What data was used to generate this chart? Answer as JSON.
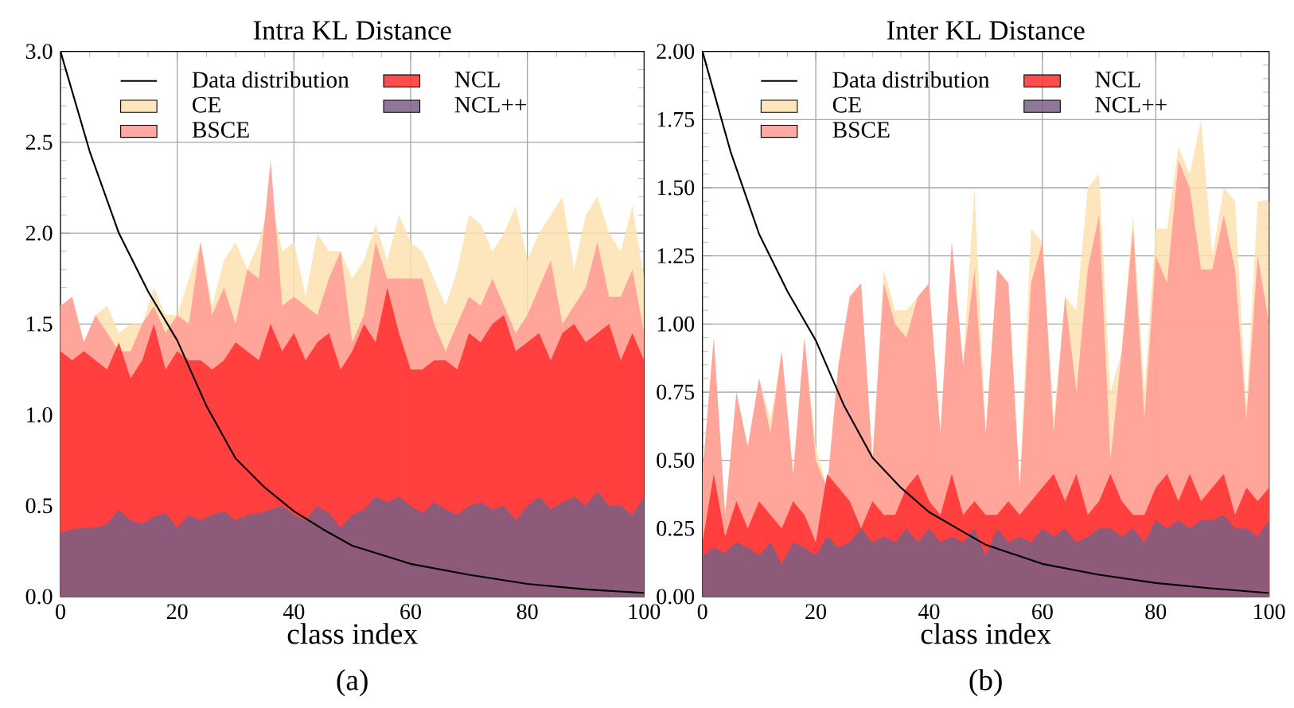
{
  "chart_data": [
    {
      "type": "area",
      "title": "Intra KL Distance",
      "xlabel": "class index",
      "annotations": [
        "(a)"
      ],
      "x": [
        0,
        2,
        4,
        6,
        8,
        10,
        12,
        14,
        16,
        18,
        20,
        22,
        24,
        26,
        28,
        30,
        32,
        34,
        36,
        38,
        40,
        42,
        44,
        46,
        48,
        50,
        52,
        54,
        56,
        58,
        60,
        62,
        64,
        66,
        68,
        70,
        72,
        74,
        76,
        78,
        80,
        82,
        84,
        86,
        88,
        90,
        92,
        94,
        96,
        98,
        100
      ],
      "xlim": [
        0,
        100
      ],
      "ylim": [
        0,
        3
      ],
      "xticks": [
        0,
        20,
        40,
        60,
        80,
        100
      ],
      "yticks": [
        {
          "value": 0,
          "label": "0.0"
        },
        0.5,
        {
          "value": 1,
          "label": "1.0"
        },
        1.5,
        {
          "value": 2,
          "label": "2.0"
        },
        2.5,
        {
          "value": 3,
          "label": "3.0"
        }
      ],
      "grid": true,
      "legend": "top",
      "marker": "none",
      "series": [
        {
          "name": "Data distribution",
          "type": "line",
          "color": "#000000",
          "x": [
            0,
            5,
            10,
            15,
            20,
            25,
            30,
            35,
            40,
            45,
            50,
            60,
            70,
            80,
            90,
            100
          ],
          "values": [
            3.0,
            2.45,
            2.0,
            1.68,
            1.41,
            1.05,
            0.76,
            0.6,
            0.47,
            0.37,
            0.28,
            0.18,
            0.12,
            0.07,
            0.04,
            0.02
          ]
        },
        {
          "name": "CE",
          "color": "#fde0b0",
          "values": [
            1.6,
            1.65,
            1.4,
            1.55,
            1.6,
            1.45,
            1.5,
            1.5,
            1.7,
            1.55,
            1.55,
            1.75,
            1.95,
            1.6,
            1.85,
            1.95,
            1.8,
            1.95,
            2.2,
            1.9,
            1.95,
            1.65,
            2.0,
            1.9,
            1.9,
            1.75,
            1.85,
            2.05,
            1.85,
            2.1,
            1.95,
            1.9,
            1.75,
            1.6,
            1.8,
            2.1,
            2.05,
            1.9,
            2.0,
            2.15,
            1.85,
            2.0,
            2.1,
            2.2,
            1.8,
            2.1,
            2.2,
            2.0,
            1.9,
            2.15,
            1.75
          ]
        },
        {
          "name": "BSCE",
          "color": "#ff9a94",
          "values": [
            1.6,
            1.65,
            1.4,
            1.55,
            1.45,
            1.35,
            1.35,
            1.5,
            1.6,
            1.45,
            1.55,
            1.5,
            1.95,
            1.55,
            1.7,
            1.5,
            1.8,
            1.75,
            2.4,
            1.6,
            1.65,
            1.6,
            1.55,
            1.75,
            1.9,
            1.4,
            1.55,
            1.95,
            1.75,
            1.75,
            1.75,
            1.75,
            1.5,
            1.35,
            1.5,
            1.65,
            1.6,
            1.75,
            1.6,
            1.45,
            1.55,
            1.7,
            1.85,
            1.5,
            1.6,
            1.7,
            1.95,
            1.65,
            1.65,
            1.8,
            1.45
          ]
        },
        {
          "name": "NCL",
          "color": "#ff2e2e",
          "values": [
            1.35,
            1.3,
            1.35,
            1.3,
            1.25,
            1.4,
            1.2,
            1.3,
            1.5,
            1.25,
            1.35,
            1.3,
            1.3,
            1.25,
            1.3,
            1.4,
            1.35,
            1.3,
            1.5,
            1.35,
            1.45,
            1.3,
            1.4,
            1.45,
            1.25,
            1.35,
            1.5,
            1.4,
            1.7,
            1.45,
            1.25,
            1.25,
            1.3,
            1.3,
            1.25,
            1.45,
            1.4,
            1.5,
            1.55,
            1.35,
            1.4,
            1.45,
            1.3,
            1.45,
            1.5,
            1.4,
            1.45,
            1.5,
            1.3,
            1.45,
            1.3
          ]
        },
        {
          "name": "NCL++",
          "color": "#7a5f85",
          "values": [
            0.35,
            0.37,
            0.38,
            0.38,
            0.4,
            0.48,
            0.42,
            0.4,
            0.44,
            0.46,
            0.38,
            0.45,
            0.42,
            0.45,
            0.47,
            0.42,
            0.45,
            0.46,
            0.48,
            0.5,
            0.45,
            0.42,
            0.5,
            0.46,
            0.38,
            0.45,
            0.48,
            0.55,
            0.52,
            0.55,
            0.5,
            0.46,
            0.52,
            0.48,
            0.45,
            0.5,
            0.52,
            0.48,
            0.5,
            0.42,
            0.5,
            0.55,
            0.48,
            0.52,
            0.55,
            0.5,
            0.58,
            0.5,
            0.5,
            0.45,
            0.55
          ]
        }
      ]
    },
    {
      "type": "area",
      "title": "Inter KL Distance",
      "xlabel": "class index",
      "annotations": [
        "(b)"
      ],
      "x": [
        0,
        2,
        4,
        6,
        8,
        10,
        12,
        14,
        16,
        18,
        20,
        22,
        24,
        26,
        28,
        30,
        32,
        34,
        36,
        38,
        40,
        42,
        44,
        46,
        48,
        50,
        52,
        54,
        56,
        58,
        60,
        62,
        64,
        66,
        68,
        70,
        72,
        74,
        76,
        78,
        80,
        82,
        84,
        86,
        88,
        90,
        92,
        94,
        96,
        98,
        100
      ],
      "xlim": [
        0,
        100
      ],
      "ylim": [
        0,
        2
      ],
      "xticks": [
        0,
        20,
        40,
        60,
        80,
        100
      ],
      "yticks": [
        {
          "value": 0,
          "label": "0.00"
        },
        0.25,
        {
          "value": 0.5,
          "label": "0.50"
        },
        0.75,
        {
          "value": 1,
          "label": "1.00"
        },
        1.25,
        {
          "value": 1.5,
          "label": "1.50"
        },
        1.75,
        {
          "value": 2,
          "label": "2.00"
        }
      ],
      "grid": true,
      "legend": "top",
      "marker": "none",
      "series": [
        {
          "name": "Data distribution",
          "type": "line",
          "color": "#000000",
          "x": [
            0,
            5,
            10,
            15,
            20,
            25,
            30,
            35,
            40,
            45,
            50,
            60,
            70,
            80,
            90,
            100
          ],
          "values": [
            2.0,
            1.63,
            1.33,
            1.12,
            0.94,
            0.7,
            0.51,
            0.4,
            0.31,
            0.25,
            0.19,
            0.12,
            0.08,
            0.05,
            0.03,
            0.013
          ]
        },
        {
          "name": "CE",
          "color": "#fde0b0",
          "values": [
            0.45,
            0.95,
            0.3,
            0.75,
            0.55,
            0.8,
            0.65,
            0.9,
            0.45,
            0.95,
            0.55,
            0.4,
            0.85,
            1.1,
            1.15,
            0.5,
            1.2,
            1.05,
            1.05,
            1.1,
            1.15,
            0.6,
            1.3,
            0.85,
            1.5,
            0.6,
            1.2,
            1.15,
            0.4,
            1.35,
            1.3,
            0.65,
            1.1,
            1.05,
            1.5,
            1.55,
            0.75,
            0.9,
            1.4,
            0.75,
            1.35,
            1.35,
            1.65,
            1.55,
            1.75,
            1.25,
            1.5,
            1.45,
            0.7,
            1.45,
            1.45
          ]
        },
        {
          "name": "BSCE",
          "color": "#ff9a94",
          "values": [
            0.45,
            0.95,
            0.3,
            0.75,
            0.55,
            0.8,
            0.6,
            0.9,
            0.45,
            0.95,
            0.5,
            0.4,
            0.85,
            1.1,
            1.15,
            0.5,
            1.15,
            1.0,
            0.95,
            1.1,
            1.15,
            0.6,
            1.3,
            0.85,
            1.2,
            0.6,
            1.2,
            1.15,
            0.4,
            1.15,
            1.3,
            0.6,
            1.1,
            0.75,
            1.2,
            1.4,
            0.5,
            0.9,
            1.35,
            0.65,
            1.25,
            1.15,
            1.6,
            1.5,
            1.2,
            1.2,
            1.4,
            1.2,
            0.65,
            1.25,
            1.0
          ]
        },
        {
          "name": "NCL",
          "color": "#ff2e2e",
          "values": [
            0.2,
            0.45,
            0.22,
            0.35,
            0.25,
            0.35,
            0.3,
            0.25,
            0.35,
            0.3,
            0.2,
            0.45,
            0.4,
            0.35,
            0.25,
            0.35,
            0.3,
            0.3,
            0.4,
            0.45,
            0.35,
            0.3,
            0.45,
            0.3,
            0.35,
            0.3,
            0.3,
            0.35,
            0.3,
            0.35,
            0.4,
            0.45,
            0.35,
            0.45,
            0.3,
            0.35,
            0.45,
            0.35,
            0.3,
            0.3,
            0.4,
            0.45,
            0.35,
            0.45,
            0.35,
            0.4,
            0.45,
            0.3,
            0.4,
            0.35,
            0.4
          ]
        },
        {
          "name": "NCL++",
          "color": "#7a5f85",
          "values": [
            0.15,
            0.18,
            0.16,
            0.2,
            0.18,
            0.15,
            0.2,
            0.12,
            0.2,
            0.18,
            0.15,
            0.22,
            0.18,
            0.2,
            0.25,
            0.2,
            0.22,
            0.2,
            0.25,
            0.2,
            0.25,
            0.2,
            0.22,
            0.2,
            0.25,
            0.15,
            0.25,
            0.2,
            0.22,
            0.2,
            0.25,
            0.22,
            0.25,
            0.2,
            0.22,
            0.25,
            0.25,
            0.22,
            0.25,
            0.2,
            0.28,
            0.25,
            0.28,
            0.25,
            0.28,
            0.28,
            0.3,
            0.25,
            0.25,
            0.22,
            0.28
          ]
        }
      ]
    }
  ]
}
